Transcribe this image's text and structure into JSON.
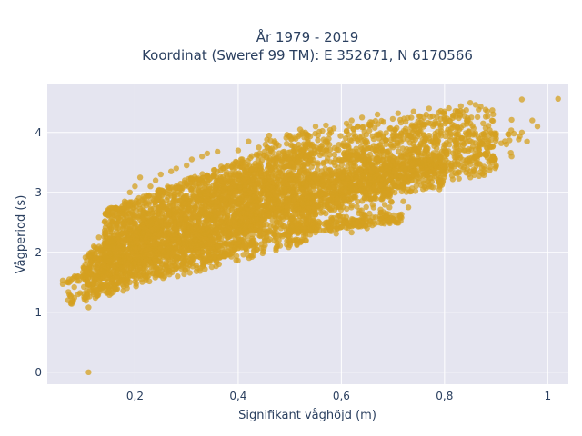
{
  "chart_data": {
    "type": "scatter",
    "title_lines": [
      "År 1979 - 2019",
      "Koordinat (Sweref 99 TM): E 352671, N 6170566"
    ],
    "xlabel": "Signifikant våghöjd (m)",
    "ylabel": "Vågperiod (s)",
    "xlim": [
      0.03,
      1.04
    ],
    "ylim": [
      -0.2,
      4.8
    ],
    "x_ticks": [
      0.2,
      0.4,
      0.6,
      0.8,
      1.0
    ],
    "x_tick_labels": [
      "0,2",
      "0,4",
      "0,6",
      "0,8",
      "1"
    ],
    "y_ticks": [
      0,
      1,
      2,
      3,
      4
    ],
    "y_tick_labels": [
      "0",
      "1",
      "2",
      "3",
      "4"
    ],
    "grid": true,
    "colors": {
      "marker": "#d4a020",
      "plot_bg": "#e5e5f0",
      "grid": "#ffffff"
    },
    "marker_opacity": 0.75,
    "points": [
      [
        0.11,
        0.0
      ],
      [
        1.02,
        4.56
      ],
      [
        0.95,
        4.55
      ],
      [
        0.87,
        4.43
      ],
      [
        0.86,
        4.46
      ],
      [
        0.93,
        4.21
      ],
      [
        0.95,
        4.0
      ],
      [
        0.91,
        3.82
      ],
      [
        0.89,
        3.76
      ],
      [
        0.86,
        3.6
      ],
      [
        0.82,
        3.43
      ],
      [
        0.85,
        3.25
      ],
      [
        0.8,
        3.3
      ],
      [
        0.76,
        3.15
      ],
      [
        0.72,
        2.85
      ],
      [
        0.68,
        2.5
      ],
      [
        0.64,
        2.49
      ],
      [
        0.59,
        2.31
      ],
      [
        0.55,
        2.33
      ],
      [
        0.5,
        2.26
      ],
      [
        0.47,
        2.2
      ],
      [
        0.42,
        2.1
      ],
      [
        0.38,
        2.02
      ],
      [
        0.34,
        1.92
      ],
      [
        0.3,
        1.8
      ],
      [
        0.26,
        1.7
      ],
      [
        0.22,
        1.6
      ],
      [
        0.19,
        1.5
      ],
      [
        0.16,
        1.42
      ],
      [
        0.13,
        1.38
      ],
      [
        0.11,
        1.08
      ],
      [
        0.08,
        1.2
      ],
      [
        0.06,
        1.47
      ],
      [
        0.06,
        1.53
      ],
      [
        0.07,
        1.5
      ],
      [
        0.09,
        1.6
      ],
      [
        0.1,
        1.75
      ],
      [
        0.12,
        2.1
      ],
      [
        0.13,
        2.25
      ],
      [
        0.15,
        2.45
      ],
      [
        0.17,
        2.7
      ],
      [
        0.18,
        2.85
      ],
      [
        0.19,
        3.0
      ],
      [
        0.2,
        3.1
      ],
      [
        0.21,
        3.25
      ],
      [
        0.24,
        3.2
      ],
      [
        0.27,
        3.35
      ],
      [
        0.3,
        3.45
      ],
      [
        0.33,
        3.6
      ],
      [
        0.36,
        3.68
      ],
      [
        0.4,
        3.7
      ],
      [
        0.44,
        3.75
      ],
      [
        0.47,
        3.83
      ],
      [
        0.5,
        3.95
      ],
      [
        0.53,
        4.0
      ],
      [
        0.55,
        4.1
      ],
      [
        0.57,
        4.12
      ],
      [
        0.61,
        4.15
      ],
      [
        0.64,
        4.25
      ],
      [
        0.67,
        4.3
      ],
      [
        0.71,
        4.32
      ],
      [
        0.74,
        4.35
      ],
      [
        0.77,
        4.4
      ],
      [
        0.8,
        4.35
      ],
      [
        0.83,
        4.3
      ],
      [
        0.85,
        4.15
      ],
      [
        0.88,
        4.0
      ],
      [
        0.9,
        3.9
      ],
      [
        0.92,
        3.8
      ],
      [
        0.84,
        3.7
      ],
      [
        0.8,
        3.6
      ],
      [
        0.76,
        3.5
      ],
      [
        0.72,
        3.4
      ],
      [
        0.68,
        3.2
      ],
      [
        0.64,
        3.05
      ],
      [
        0.6,
        2.95
      ],
      [
        0.56,
        2.75
      ],
      [
        0.52,
        2.6
      ],
      [
        0.48,
        2.5
      ],
      [
        0.44,
        2.35
      ],
      [
        0.4,
        2.25
      ],
      [
        0.36,
        2.1
      ],
      [
        0.32,
        2.0
      ],
      [
        0.28,
        1.85
      ],
      [
        0.24,
        1.72
      ],
      [
        0.2,
        1.6
      ],
      [
        0.16,
        1.48
      ],
      [
        0.12,
        1.4
      ],
      [
        0.09,
        1.3
      ],
      [
        0.07,
        1.2
      ],
      [
        0.65,
        2.4
      ],
      [
        0.66,
        2.45
      ],
      [
        0.62,
        2.33
      ],
      [
        0.58,
        2.35
      ],
      [
        0.53,
        2.4
      ],
      [
        0.49,
        2.3
      ],
      [
        0.45,
        2.25
      ],
      [
        0.7,
        2.55
      ],
      [
        0.73,
        2.75
      ],
      [
        0.79,
        3.05
      ],
      [
        0.9,
        3.45
      ],
      [
        0.93,
        3.6
      ],
      [
        0.96,
        3.85
      ],
      [
        0.98,
        4.1
      ],
      [
        0.97,
        4.2
      ],
      [
        0.34,
        3.65
      ],
      [
        0.31,
        3.55
      ],
      [
        0.28,
        3.4
      ],
      [
        0.25,
        3.3
      ],
      [
        0.23,
        3.1
      ],
      [
        0.42,
        3.85
      ],
      [
        0.46,
        3.95
      ],
      [
        0.52,
        4.05
      ],
      [
        0.58,
        4.0
      ],
      [
        0.62,
        4.2
      ]
    ],
    "bands": [
      {
        "x0": 0.06,
        "x1": 0.95,
        "ylo0": 1.45,
        "ylo1": 3.7,
        "yhi0": 1.55,
        "yhi1": 4.2,
        "n": 220
      },
      {
        "x0": 0.07,
        "x1": 0.55,
        "ylo0": 1.1,
        "ylo1": 2.2,
        "yhi0": 1.6,
        "yhi1": 2.5,
        "n": 260
      },
      {
        "x0": 0.1,
        "x1": 0.55,
        "ylo0": 1.2,
        "ylo1": 2.4,
        "yhi0": 2.0,
        "yhi1": 3.95,
        "n": 1500
      },
      {
        "x0": 0.14,
        "x1": 0.45,
        "ylo0": 1.6,
        "ylo1": 2.4,
        "yhi0": 2.7,
        "yhi1": 3.7,
        "n": 1400
      },
      {
        "x0": 0.45,
        "x1": 0.7,
        "ylo0": 2.3,
        "ylo1": 2.6,
        "yhi0": 3.9,
        "yhi1": 4.25,
        "n": 650
      },
      {
        "x0": 0.45,
        "x1": 0.8,
        "ylo0": 2.6,
        "ylo1": 3.1,
        "yhi0": 3.2,
        "yhi1": 3.6,
        "n": 550
      },
      {
        "x0": 0.5,
        "x1": 0.72,
        "ylo0": 2.3,
        "ylo1": 2.5,
        "yhi0": 2.45,
        "yhi1": 2.65,
        "n": 160
      },
      {
        "x0": 0.6,
        "x1": 0.9,
        "ylo0": 3.0,
        "ylo1": 3.3,
        "yhi0": 3.7,
        "yhi1": 4.1,
        "n": 400
      },
      {
        "x0": 0.7,
        "x1": 0.9,
        "ylo0": 3.2,
        "ylo1": 3.4,
        "yhi0": 4.1,
        "yhi1": 4.45,
        "n": 180
      },
      {
        "x0": 0.7,
        "x1": 0.85,
        "ylo0": 3.8,
        "ylo1": 4.0,
        "yhi0": 4.2,
        "yhi1": 4.5,
        "n": 90
      }
    ]
  }
}
